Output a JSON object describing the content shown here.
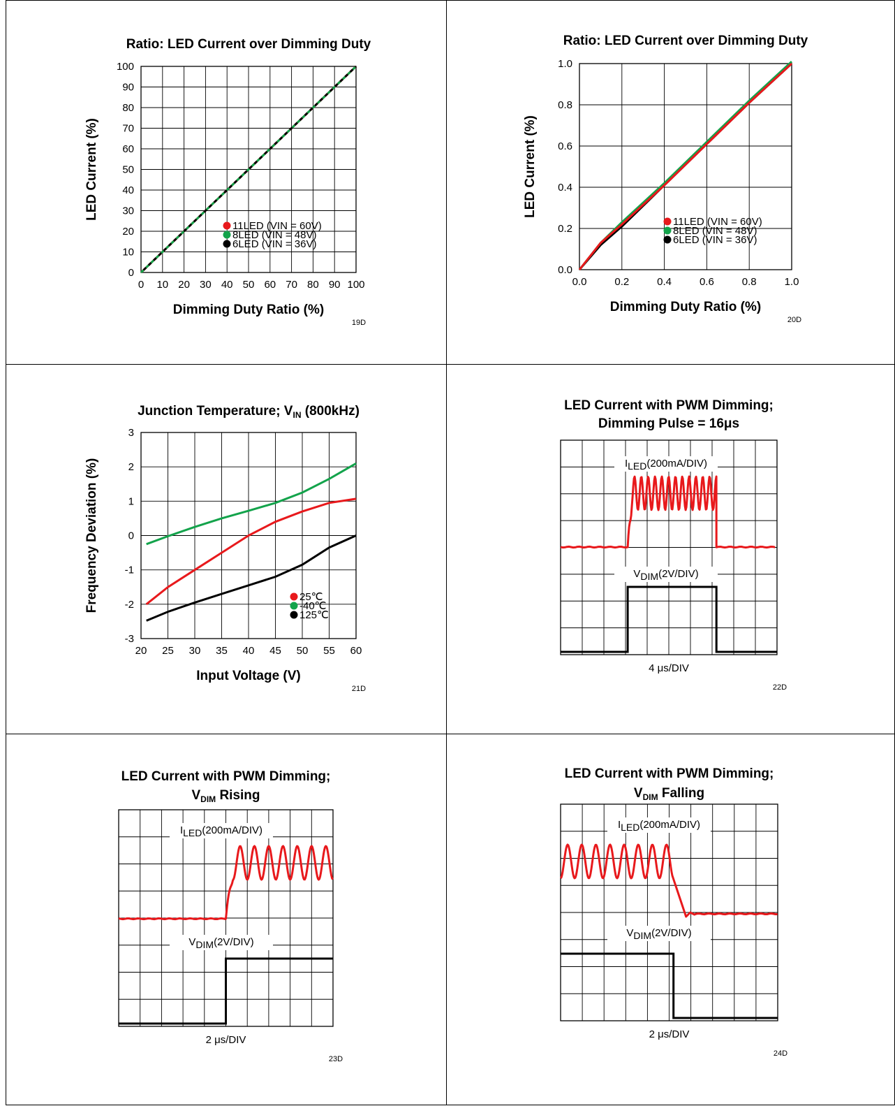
{
  "chart_data": [
    {
      "type": "line",
      "id": "19D",
      "title": "Ratio: LED Current over Dimming Duty",
      "xlabel": "Dimming Duty Ratio (%)",
      "ylabel": "LED Current (%)",
      "xlim": [
        0,
        100
      ],
      "ylim": [
        0,
        100
      ],
      "xticks": [
        "0",
        "10",
        "20",
        "30",
        "40",
        "50",
        "60",
        "70",
        "80",
        "90",
        "100"
      ],
      "yticks": [
        "0",
        "10",
        "20",
        "30",
        "40",
        "50",
        "60",
        "70",
        "80",
        "90",
        "100"
      ],
      "grid": true,
      "legend_position": "bottom-right",
      "series": [
        {
          "name": "11LED (VIN = 60V)",
          "color": "#e8191c",
          "x": [
            0,
            100
          ],
          "y": [
            0,
            100
          ]
        },
        {
          "name": "8LED (VIN = 48V)",
          "color": "#13a34b",
          "x": [
            0,
            100
          ],
          "y": [
            0,
            100
          ]
        },
        {
          "name": "6LED (VIN = 36V)",
          "color": "#000000",
          "x": [
            0,
            100
          ],
          "y": [
            0,
            100
          ]
        }
      ]
    },
    {
      "type": "line",
      "id": "20D",
      "title": "Ratio: LED Current over Dimming Duty",
      "xlabel": "Dimming Duty Ratio (%)",
      "ylabel": "LED Current (%)",
      "xlim": [
        0,
        1
      ],
      "ylim": [
        0,
        1
      ],
      "xticks": [
        "0.0",
        "0.2",
        "0.4",
        "0.6",
        "0.8",
        "1.0"
      ],
      "yticks": [
        "0.0",
        "0.2",
        "0.4",
        "0.6",
        "0.8",
        "1.0"
      ],
      "grid": true,
      "legend_position": "bottom-right",
      "series": [
        {
          "name": "11LED (VIN = 60V)",
          "color": "#e8191c",
          "x": [
            0,
            0.1,
            0.2,
            0.4,
            0.6,
            0.8,
            1.0
          ],
          "y": [
            0,
            0.13,
            0.22,
            0.41,
            0.61,
            0.81,
            1.0
          ]
        },
        {
          "name": "8LED (VIN = 48V)",
          "color": "#13a34b",
          "x": [
            0,
            0.1,
            0.2,
            0.4,
            0.6,
            0.8,
            1.0
          ],
          "y": [
            0,
            0.13,
            0.23,
            0.42,
            0.62,
            0.82,
            1.01
          ]
        },
        {
          "name": "6LED (VIN = 36V)",
          "color": "#000000",
          "x": [
            0,
            0.1,
            0.2,
            0.4,
            0.6,
            0.8,
            1.0
          ],
          "y": [
            0,
            0.12,
            0.21,
            0.41,
            0.61,
            0.81,
            1.0
          ]
        }
      ]
    },
    {
      "type": "line",
      "id": "21D",
      "title_main": "Junction Temperature; V",
      "title_sub": "IN",
      "title_rest": " (800kHz)",
      "xlabel": "Input Voltage (V)",
      "ylabel": "Frequency Deviation (%)",
      "xlim": [
        20,
        60
      ],
      "ylim": [
        -3,
        3
      ],
      "xticks": [
        "20",
        "25",
        "30",
        "35",
        "40",
        "45",
        "50",
        "55",
        "60"
      ],
      "yticks": [
        "-3",
        "-2",
        "-1",
        "0",
        "1",
        "2",
        "3"
      ],
      "grid": true,
      "legend_position": "bottom-right",
      "series": [
        {
          "name": "25℃",
          "color": "#e8191c",
          "x": [
            21,
            25,
            30,
            35,
            40,
            45,
            50,
            55,
            60
          ],
          "y": [
            -2.0,
            -1.5,
            -1.0,
            -0.5,
            0.0,
            0.4,
            0.7,
            0.95,
            1.07
          ]
        },
        {
          "name": "-40℃",
          "color": "#13a34b",
          "x": [
            21,
            25,
            30,
            35,
            40,
            45,
            50,
            55,
            60
          ],
          "y": [
            -0.25,
            -0.02,
            0.25,
            0.5,
            0.72,
            0.95,
            1.25,
            1.65,
            2.1
          ]
        },
        {
          "name": "125℃",
          "color": "#000000",
          "x": [
            21,
            25,
            30,
            35,
            40,
            45,
            50,
            55,
            60
          ],
          "y": [
            -2.48,
            -2.22,
            -1.95,
            -1.7,
            -1.45,
            -1.2,
            -0.85,
            -0.35,
            0.0
          ]
        }
      ]
    },
    {
      "type": "scope",
      "id": "22D",
      "title_lines": [
        "LED Current with PWM Dimming;",
        "Dimming Pulse = 16μs"
      ],
      "timebase": "4 μs/DIV",
      "trace1_label_main": "I",
      "trace1_label_sub": "LED",
      "trace1_label_rest": "(200mA/DIV)",
      "trace2_label_main": "V",
      "trace2_label_sub": "DIM",
      "trace2_label_rest": "(2V/DIV)",
      "pulse_start_div": 3.1,
      "pulse_end_div": 7.2,
      "ripple_cycles": 13
    },
    {
      "type": "scope",
      "id": "23D",
      "title_main": "LED Current with PWM Dimming;",
      "title2_main": "V",
      "title2_sub": "DIM",
      "title2_rest": " Rising",
      "timebase": "2 μs/DIV",
      "trace1_label_main": "I",
      "trace1_label_sub": "LED",
      "trace1_label_rest": "(200mA/DIV)",
      "trace2_label_main": "V",
      "trace2_label_sub": "DIM",
      "trace2_label_rest": "(2V/DIV)",
      "edge": "rising",
      "edge_div": 5.0,
      "ripple_cycles": 7.5
    },
    {
      "type": "scope",
      "id": "24D",
      "title_main": "LED Current with PWM Dimming;",
      "title2_main": "V",
      "title2_sub": "DIM",
      "title2_rest": " Falling",
      "timebase": "2 μs/DIV",
      "trace1_label_main": "I",
      "trace1_label_sub": "LED",
      "trace1_label_rest": "(200mA/DIV)",
      "trace2_label_main": "V",
      "trace2_label_sub": "DIM",
      "trace2_label_rest": "(2V/DIV)",
      "edge": "falling",
      "edge_div": 5.2,
      "ripple_cycles": 7.5
    }
  ]
}
